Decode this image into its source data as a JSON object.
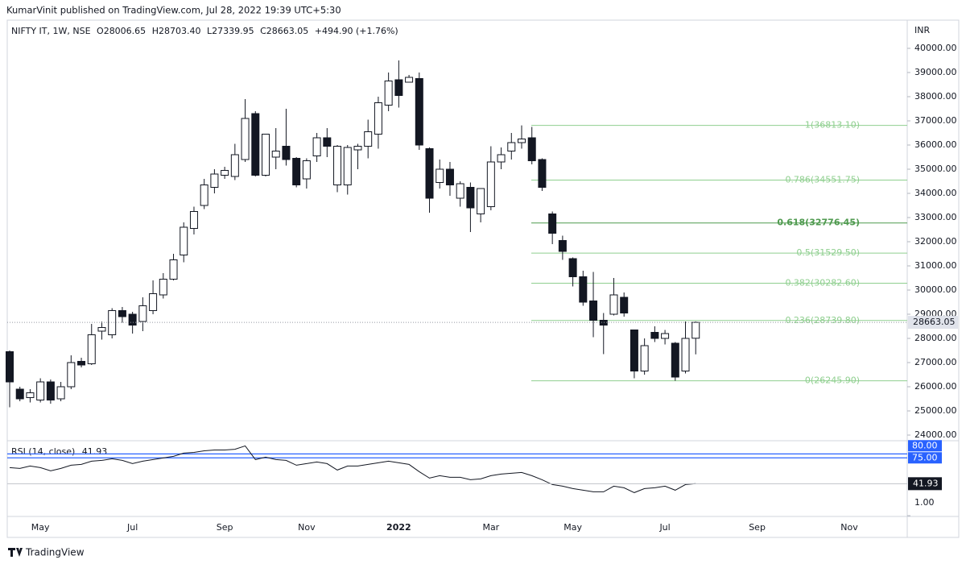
{
  "header": {
    "publisher": "KumarVinit published on TradingView.com, Jul 28, 2022 19:39 UTC+5:30",
    "brand": "TradingView"
  },
  "chart_data": [
    {
      "type": "candlestick",
      "legend": "NIFTY IT, 1W, NSE",
      "ohlc_legend": [
        "O28006.65",
        "H28703.40",
        "L27339.95",
        "C28663.05",
        "+494.90 (+1.76%)"
      ],
      "currency": "INR",
      "categories": [
        null,
        null,
        null,
        "May",
        null,
        null,
        null,
        null,
        null,
        null,
        null,
        null,
        "Jul",
        null,
        null,
        null,
        null,
        null,
        null,
        null,
        null,
        "Sep",
        null,
        null,
        null,
        null,
        null,
        null,
        null,
        "Nov",
        null,
        null,
        null,
        null,
        null,
        null,
        null,
        null,
        "2022",
        null,
        null,
        null,
        null,
        null,
        null,
        null,
        null,
        "Mar",
        null,
        null,
        null,
        null,
        null,
        null,
        null,
        "May",
        null,
        null,
        null,
        null,
        null,
        null,
        null,
        null,
        "Jul",
        null,
        null,
        null,
        null,
        null,
        null,
        null,
        null,
        "Sep",
        null,
        null,
        null,
        null,
        null,
        null,
        null,
        null,
        "Nov",
        null,
        null,
        null,
        null,
        null
      ],
      "open": [
        27450,
        25900,
        25550,
        25450,
        26200,
        25500,
        26000,
        27050,
        26950,
        28300,
        28150,
        29150,
        29000,
        28700,
        29150,
        29800,
        30450,
        31450,
        32550,
        33500,
        34250,
        34750,
        34700,
        35400,
        37300,
        34750,
        35500,
        35950,
        35450,
        34600,
        35550,
        36300,
        34350,
        34350,
        35800,
        35950,
        36450,
        37650,
        38700,
        38600,
        38750,
        35850,
        34450,
        35000,
        33800,
        34250,
        33150,
        33450,
        35300,
        35750,
        36100,
        36300,
        35400,
        33150,
        32050,
        31300,
        30550,
        29550,
        28750,
        29000,
        29700,
        28350,
        26650,
        28250,
        28000,
        27800,
        26650,
        28006.65,
        null,
        null,
        null,
        null,
        null,
        null,
        null,
        null,
        null,
        null,
        null,
        null,
        null,
        null,
        null,
        null,
        null,
        null,
        null,
        null
      ],
      "high": [
        27500,
        26000,
        25900,
        26350,
        26300,
        26200,
        27300,
        27200,
        28600,
        28700,
        29250,
        29300,
        29100,
        29700,
        30400,
        30700,
        31500,
        32800,
        33450,
        34600,
        35000,
        35100,
        36050,
        37900,
        37400,
        36450,
        36700,
        37500,
        35500,
        35450,
        36500,
        36700,
        36000,
        36000,
        36050,
        37050,
        38000,
        39000,
        39500,
        38900,
        39000,
        35900,
        35400,
        35300,
        34500,
        34450,
        34200,
        35950,
        35900,
        36500,
        36813.1,
        36750,
        35450,
        33250,
        32250,
        31350,
        30800,
        30750,
        29050,
        30500,
        29900,
        28350,
        28000,
        28500,
        28350,
        27850,
        28700,
        28703.4,
        null,
        null,
        null,
        null,
        null,
        null,
        null,
        null,
        null,
        null,
        null,
        null,
        null,
        null,
        null,
        null,
        null,
        null,
        null,
        null
      ],
      "low": [
        25150,
        25400,
        25350,
        25350,
        25300,
        25400,
        25900,
        26800,
        26900,
        27950,
        28000,
        28650,
        28200,
        28300,
        29000,
        29650,
        30400,
        31150,
        32300,
        33350,
        34000,
        34600,
        34550,
        35300,
        34700,
        34700,
        35000,
        35150,
        34250,
        34200,
        35300,
        35500,
        34050,
        33950,
        35000,
        35450,
        35850,
        37400,
        37550,
        38600,
        35800,
        33200,
        34200,
        33900,
        33450,
        32400,
        32800,
        33300,
        35000,
        35400,
        35850,
        35200,
        34100,
        31900,
        31250,
        30150,
        29350,
        28050,
        27350,
        28950,
        28900,
        26350,
        26500,
        27850,
        27750,
        26245.9,
        26550,
        27339.95,
        null,
        null,
        null,
        null,
        null,
        null,
        null,
        null,
        null,
        null,
        null,
        null,
        null,
        null,
        null,
        null,
        null,
        null,
        null,
        null
      ],
      "close": [
        26200,
        25500,
        25750,
        26200,
        25450,
        26000,
        27000,
        26900,
        28150,
        28450,
        29150,
        28900,
        28550,
        29350,
        29850,
        30450,
        31250,
        32600,
        33250,
        34350,
        34800,
        34950,
        35600,
        37100,
        34750,
        36450,
        35750,
        35400,
        34350,
        35350,
        36300,
        35950,
        35950,
        35900,
        35950,
        36550,
        37750,
        38650,
        38050,
        38800,
        36000,
        33800,
        35000,
        34350,
        34400,
        33400,
        34200,
        35300,
        35600,
        36100,
        36250,
        35350,
        34250,
        32350,
        31600,
        30550,
        29500,
        28750,
        28550,
        29800,
        29050,
        26650,
        27700,
        28000,
        28200,
        26400,
        28000,
        28663.05,
        null,
        null,
        null,
        null,
        null,
        null,
        null,
        null,
        null,
        null,
        null,
        null,
        null,
        null,
        null,
        null,
        null,
        null,
        null,
        null
      ],
      "up_color": "#ffffff",
      "down_color": "#131722",
      "wick_color": "#131722",
      "ylim": [
        23833,
        41167
      ],
      "yticks": [
        {
          "value": 24000,
          "label": "24000.00"
        },
        {
          "value": 25000,
          "label": "25000.00"
        },
        {
          "value": 26000,
          "label": "26000.00"
        },
        {
          "value": 27000,
          "label": "27000.00"
        },
        {
          "value": 28000,
          "label": "28000.00"
        },
        {
          "value": 29000,
          "label": "29000.00"
        },
        {
          "value": 30000,
          "label": "30000.00"
        },
        {
          "value": 31000,
          "label": "31000.00"
        },
        {
          "value": 32000,
          "label": "32000.00"
        },
        {
          "value": 33000,
          "label": "33000.00"
        },
        {
          "value": 34000,
          "label": "34000.00"
        },
        {
          "value": 35000,
          "label": "35000.00"
        },
        {
          "value": 36000,
          "label": "36000.00"
        },
        {
          "value": 37000,
          "label": "37000.00"
        },
        {
          "value": 38000,
          "label": "38000.00"
        },
        {
          "value": 39000,
          "label": "39000.00"
        },
        {
          "value": 40000,
          "label": "40000.00"
        }
      ],
      "fib_levels": [
        {
          "value": 36813.1,
          "label": "1(36813.10)",
          "color": "#8fcf8f"
        },
        {
          "value": 34551.75,
          "label": "0.786(34551.75)",
          "color": "#8fcf8f"
        },
        {
          "value": 32776.45,
          "label": "0.618(32776.45)",
          "color": "#4f9a4f"
        },
        {
          "value": 31529.5,
          "label": "0.5(31529.50)",
          "color": "#8fcf8f"
        },
        {
          "value": 30282.6,
          "label": "0.382(30282.60)",
          "color": "#8fcf8f"
        },
        {
          "value": 28739.8,
          "label": "0.236(28739.80)",
          "color": "#8fcf8f"
        },
        {
          "value": 26245.9,
          "label": "0(26245.90)",
          "color": "#8fcf8f"
        }
      ]
    },
    {
      "type": "line",
      "title": "RSI (14, close)",
      "color": "#131722",
      "values": [
        62.5,
        61.4,
        64.5,
        62.5,
        58.4,
        61.4,
        65.6,
        66.6,
        70.7,
        71.8,
        73.8,
        71.8,
        67.6,
        70.7,
        72.8,
        74.8,
        76.9,
        81,
        82,
        84,
        85,
        85,
        86,
        90.3,
        72.8,
        75.9,
        72.8,
        71.8,
        65.6,
        67.6,
        69.7,
        67.6,
        59.4,
        64.5,
        64.5,
        66.6,
        68.7,
        70.7,
        68.7,
        66.6,
        57.3,
        49.1,
        52.2,
        50.1,
        50.1,
        47,
        48,
        52.2,
        54.2,
        55.3,
        56.3,
        52.2,
        47,
        40.8,
        38.8,
        35.7,
        33.6,
        31.5,
        31.5,
        38.8,
        36.7,
        30.5,
        35.7,
        36.7,
        38.8,
        33.6,
        40.8,
        41.93,
        null,
        null,
        null,
        null,
        null,
        null,
        null,
        null,
        null,
        null,
        null,
        null,
        null,
        null,
        null,
        null,
        null,
        null,
        null,
        null
      ],
      "ylim": [
        0,
        100
      ],
      "levels": [
        {
          "value": 80,
          "label": "80.00"
        },
        {
          "value": 75,
          "label": "75.00"
        }
      ],
      "level_color": "#2962ff",
      "yticks": [
        {
          "value": 1,
          "label": "1.00"
        }
      ]
    }
  ]
}
